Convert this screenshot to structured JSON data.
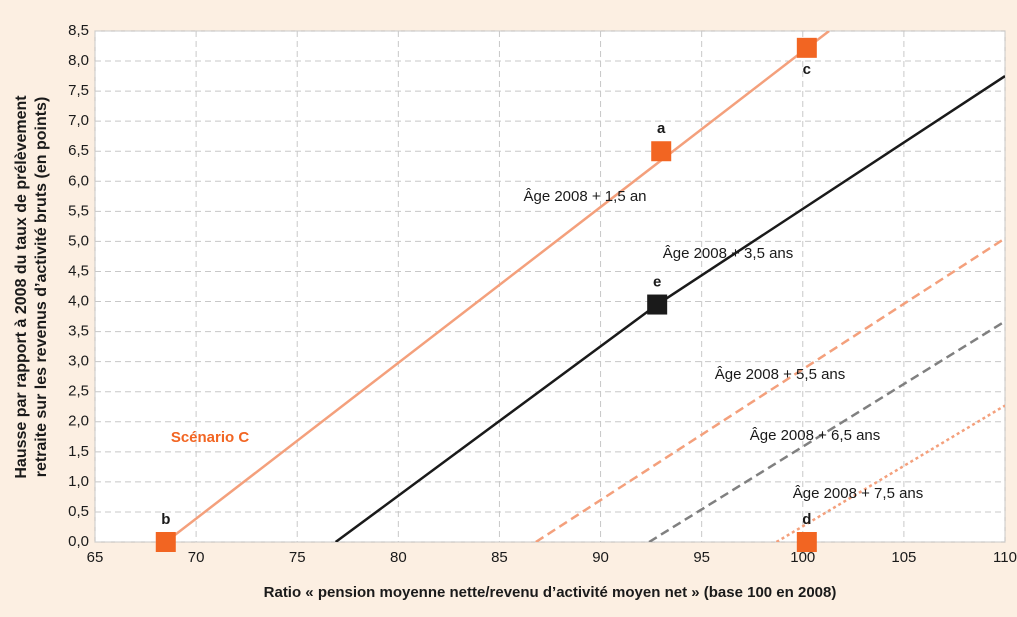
{
  "chart_data": {
    "type": "line",
    "xlabel": "Ratio « pension moyenne nette/revenu d’activité moyen net » (base 100 en 2008)",
    "ylabel": [
      "Hausse par rapport à 2008 du taux de prélèvement",
      "retraite sur les revenus d’activité bruts (en points)"
    ],
    "xlim": [
      65,
      110
    ],
    "xticks": [
      65,
      70,
      75,
      80,
      85,
      90,
      95,
      100,
      105,
      110
    ],
    "ylim": [
      0,
      8.5
    ],
    "yticks": [
      {
        "value": 0,
        "label": "0,0"
      },
      {
        "value": 0.5,
        "label": "0,5"
      },
      {
        "value": 1,
        "label": "1,0"
      },
      {
        "value": 1.5,
        "label": "1,5"
      },
      {
        "value": 2,
        "label": "2,0"
      },
      {
        "value": 2.5,
        "label": "2,5"
      },
      {
        "value": 3,
        "label": "3,0"
      },
      {
        "value": 3.5,
        "label": "3,5"
      },
      {
        "value": 4,
        "label": "4,0"
      },
      {
        "value": 4.5,
        "label": "4,5"
      },
      {
        "value": 5,
        "label": "5,0"
      },
      {
        "value": 5.5,
        "label": "5,5"
      },
      {
        "value": 6,
        "label": "6,0"
      },
      {
        "value": 6.5,
        "label": "6,5"
      },
      {
        "value": 7,
        "label": "7,0"
      },
      {
        "value": 7.5,
        "label": "7,5"
      },
      {
        "value": 8,
        "label": "8,0"
      },
      {
        "value": 8.5,
        "label": "8,5"
      }
    ],
    "grid": true,
    "series": [
      {
        "name": "Âge 2008  + 1,5 an",
        "color": "#f4a07c",
        "dash": "solid",
        "x": [
          68.5,
          101.3
        ],
        "values": [
          0,
          8.5
        ]
      },
      {
        "name": "Âge 2008 + 3,5 ans",
        "color": "#1a1a1a",
        "dash": "solid",
        "x": [
          76.9,
          92.8,
          110
        ],
        "values": [
          0,
          3.95,
          7.75
        ]
      },
      {
        "name": "Âge 2008 + 5,5 ans",
        "color": "#f4a07c",
        "dash": "dashed",
        "x": [
          86.8,
          110
        ],
        "values": [
          0,
          5.05
        ]
      },
      {
        "name": "Âge 2008 + 6,5 ans",
        "color": "#808080",
        "dash": "dashed",
        "x": [
          92.4,
          110
        ],
        "values": [
          0,
          3.67
        ]
      },
      {
        "name": "Âge 2008 + 7,5 ans",
        "color": "#f4a07c",
        "dash": "dotted",
        "x": [
          98.7,
          110
        ],
        "values": [
          0,
          2.27
        ]
      }
    ],
    "points": [
      {
        "label": "a",
        "x": 93,
        "y": 6.5,
        "color": "#f26522"
      },
      {
        "label": "b",
        "x": 68.5,
        "y": 0,
        "color": "#f26522"
      },
      {
        "label": "c",
        "x": 100.2,
        "y": 8.22,
        "color": "#f26522"
      },
      {
        "label": "d",
        "x": 100.2,
        "y": 0,
        "color": "#f26522"
      },
      {
        "label": "e",
        "x": 92.8,
        "y": 3.95,
        "color": "#1a1a1a"
      }
    ],
    "annotation": {
      "text": "Scénario C",
      "color": "#f26522"
    }
  }
}
